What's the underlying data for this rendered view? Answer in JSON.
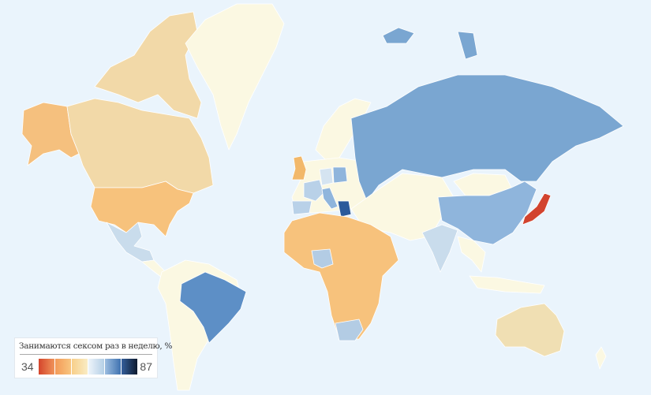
{
  "legend": {
    "title": "Занимаются сексом раз в неделю, %",
    "min": "34",
    "max": "87",
    "scale_colors": [
      [
        "#d4452c",
        "#f0945a"
      ],
      [
        "#f39a58",
        "#f8c57f"
      ],
      [
        "#f8cf8a",
        "#f9ecc4"
      ],
      [
        "#eef4fa",
        "#b4cfe6"
      ],
      [
        "#9cbde0",
        "#3f72b0"
      ],
      [
        "#355f9c",
        "#0d1a2e"
      ]
    ]
  },
  "map": {
    "background": "#eaf4fc",
    "countries": [
      {
        "name": "Alaska",
        "color": "#f5c07e"
      },
      {
        "name": "Canada",
        "color": "#f2d9a8"
      },
      {
        "name": "Canada Arctic islands",
        "color": "#f2d9a8"
      },
      {
        "name": "Greenland",
        "color": "#fbf8e2"
      },
      {
        "name": "United States",
        "color": "#f7c27c"
      },
      {
        "name": "Mexico",
        "color": "#c9dcec"
      },
      {
        "name": "Central America",
        "color": "#fbf8e2"
      },
      {
        "name": "South America",
        "color": "#fbf8e2"
      },
      {
        "name": "Brazil",
        "color": "#5d8fc6"
      },
      {
        "name": "Africa",
        "color": "#fbf8e2"
      },
      {
        "name": "Nigeria",
        "color": "#f7c27c"
      },
      {
        "name": "South Africa",
        "color": "#b3cce4"
      },
      {
        "name": "Europe",
        "color": "#fbf8e2"
      },
      {
        "name": "United Kingdom",
        "color": "#f2b86a"
      },
      {
        "name": "France",
        "color": "#b9d1e8"
      },
      {
        "name": "Spain",
        "color": "#b9d1e8"
      },
      {
        "name": "Germany",
        "color": "#d5e4f1"
      },
      {
        "name": "Poland",
        "color": "#8fb5dc"
      },
      {
        "name": "Italy",
        "color": "#8fb5dc"
      },
      {
        "name": "Greece",
        "color": "#2b5a9b"
      },
      {
        "name": "Scandinavia",
        "color": "#fbf8e2"
      },
      {
        "name": "Russia",
        "color": "#7aa6d1"
      },
      {
        "name": "Middle East and Central Asia",
        "color": "#fbf8e2"
      },
      {
        "name": "China",
        "color": "#8fb5dc"
      },
      {
        "name": "Mongolia",
        "color": "#fbf8e2"
      },
      {
        "name": "India",
        "color": "#c9dcec"
      },
      {
        "name": "Southeast Asia",
        "color": "#fbf8e2"
      },
      {
        "name": "Indonesia",
        "color": "#fbf8e2"
      },
      {
        "name": "Japan",
        "color": "#d2432e"
      },
      {
        "name": "Australia",
        "color": "#f0dfb3"
      },
      {
        "name": "New Zealand",
        "color": "#fbf8e2"
      },
      {
        "name": "Svalbard and Arctic islands",
        "color": "#7aa6d1"
      }
    ]
  }
}
